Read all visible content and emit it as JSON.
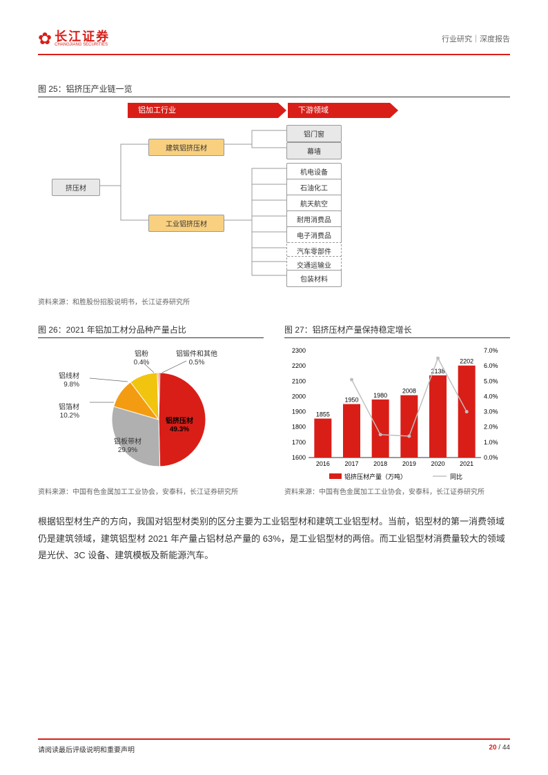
{
  "header": {
    "logo_cn": "长江证券",
    "logo_en": "CHANGJIANG SECURITIES",
    "breadcrumb": "行业研究｜深度报告"
  },
  "fig25": {
    "title": "图 25：铝挤压产业链一览",
    "source": "资料来源：和胜股份招股说明书，长江证券研究所",
    "header1": "铝加工行业",
    "header2": "下游领域",
    "root": "挤压材",
    "mid1": "建筑铝挤压材",
    "mid2": "工业铝挤压材",
    "leaves_top": [
      "铝门窗",
      "幕墙"
    ],
    "leaves_mid": [
      "机电设备",
      "石油化工",
      "航天航空",
      "耐用消费品",
      "电子消费品"
    ],
    "leaves_dashed": [
      "汽车零部件",
      "交通运输业"
    ],
    "leaves_bottom": [
      "包装材料"
    ]
  },
  "fig26": {
    "title": "图 26：2021 年铝加工材分品种产量占比",
    "source": "资料来源：中国有色金属加工工业协会，安泰科，长江证券研究所",
    "slices": [
      {
        "label": "铝挤压材",
        "value": 49.3,
        "color": "#d91e18"
      },
      {
        "label": "铝板带材",
        "value": 29.9,
        "color": "#b0b0b0"
      },
      {
        "label": "铝箔材",
        "value": 10.2,
        "color": "#f39c12"
      },
      {
        "label": "铝线材",
        "value": 9.8,
        "color": "#f1c40f"
      },
      {
        "label": "铝粉",
        "value": 0.4,
        "color": "#ff7f00"
      },
      {
        "label": "铝锻件和其他",
        "value": 0.5,
        "color": "#e74c3c"
      }
    ]
  },
  "fig27": {
    "title": "图 27：铝挤压材产量保持稳定增长",
    "source": "资料来源：中国有色金属加工工业协会，安泰科，长江证券研究所",
    "years": [
      "2016",
      "2017",
      "2018",
      "2019",
      "2020",
      "2021"
    ],
    "values": [
      1855,
      1950,
      1980,
      2008,
      2138,
      2202
    ],
    "yoy": [
      null,
      5.1,
      1.5,
      1.4,
      6.5,
      3.0
    ],
    "y_left": {
      "min": 1600,
      "max": 2300,
      "step": 100
    },
    "y_right": {
      "min": 0,
      "max": 7,
      "step": 1
    },
    "bar_color": "#d91e18",
    "line_color": "#bfbfbf",
    "legend1": "铝挤压材产量（万吨）",
    "legend2": "同比"
  },
  "body": "根据铝型材生产的方向，我国对铝型材类别的区分主要为工业铝型材和建筑工业铝型材。当前，铝型材的第一消费领域仍是建筑领域，建筑铝型材 2021 年产量占铝材总产量的 63%，是工业铝型材的两倍。而工业铝型材消费量较大的领域是光伏、3C 设备、建筑模板及新能源汽车。",
  "footer": {
    "left": "请阅读最后评级说明和重要声明",
    "page_cur": "20",
    "page_total": "44"
  }
}
